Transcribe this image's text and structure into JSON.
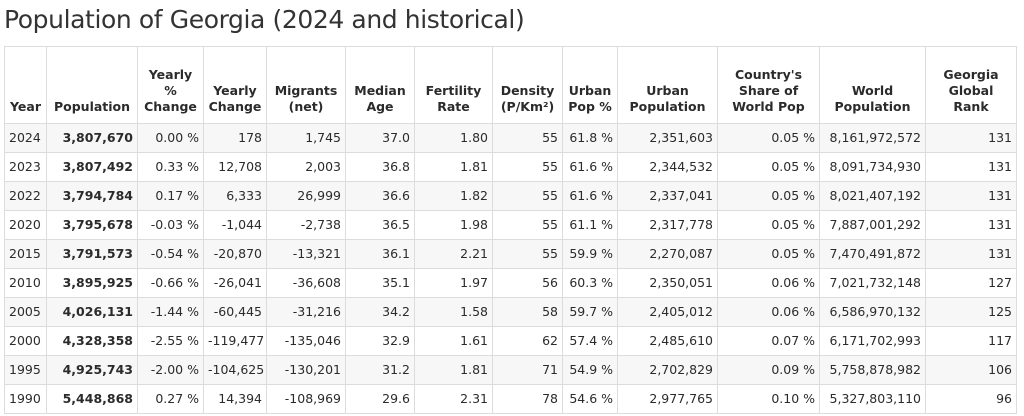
{
  "title": "Population of Georgia (2024 and historical)",
  "columns": [
    "Year",
    "Population",
    "Yearly % Change",
    "Yearly Change",
    "Migrants (net)",
    "Median Age",
    "Fertility Rate",
    "Density (P/Km²)",
    "Urban Pop %",
    "Urban Population",
    "Country's Share of World Pop",
    "World Population",
    "Georgia Global Rank"
  ],
  "rows": [
    [
      "2024",
      "3,807,670",
      "0.00 %",
      "178",
      "1,745",
      "37.0",
      "1.80",
      "55",
      "61.8 %",
      "2,351,603",
      "0.05 %",
      "8,161,972,572",
      "131"
    ],
    [
      "2023",
      "3,807,492",
      "0.33 %",
      "12,708",
      "2,003",
      "36.8",
      "1.81",
      "55",
      "61.6 %",
      "2,344,532",
      "0.05 %",
      "8,091,734,930",
      "131"
    ],
    [
      "2022",
      "3,794,784",
      "0.17 %",
      "6,333",
      "26,999",
      "36.6",
      "1.82",
      "55",
      "61.6 %",
      "2,337,041",
      "0.05 %",
      "8,021,407,192",
      "131"
    ],
    [
      "2020",
      "3,795,678",
      "-0.03 %",
      "-1,044",
      "-2,738",
      "36.5",
      "1.98",
      "55",
      "61.1 %",
      "2,317,778",
      "0.05 %",
      "7,887,001,292",
      "131"
    ],
    [
      "2015",
      "3,791,573",
      "-0.54 %",
      "-20,870",
      "-13,321",
      "36.1",
      "2.21",
      "55",
      "59.9 %",
      "2,270,087",
      "0.05 %",
      "7,470,491,872",
      "131"
    ],
    [
      "2010",
      "3,895,925",
      "-0.66 %",
      "-26,041",
      "-36,608",
      "35.1",
      "1.97",
      "56",
      "60.3 %",
      "2,350,051",
      "0.06 %",
      "7,021,732,148",
      "127"
    ],
    [
      "2005",
      "4,026,131",
      "-1.44 %",
      "-60,445",
      "-31,216",
      "34.2",
      "1.58",
      "58",
      "59.7 %",
      "2,405,012",
      "0.06 %",
      "6,586,970,132",
      "125"
    ],
    [
      "2000",
      "4,328,358",
      "-2.55 %",
      "-119,477",
      "-135,046",
      "32.9",
      "1.61",
      "62",
      "57.4 %",
      "2,485,610",
      "0.07 %",
      "6,171,702,993",
      "117"
    ],
    [
      "1995",
      "4,925,743",
      "-2.00 %",
      "-104,625",
      "-130,201",
      "31.2",
      "1.81",
      "71",
      "54.9 %",
      "2,702,829",
      "0.09 %",
      "5,758,878,982",
      "106"
    ],
    [
      "1990",
      "5,448,868",
      "0.27 %",
      "14,394",
      "-108,969",
      "29.6",
      "2.31",
      "78",
      "54.6 %",
      "2,977,765",
      "0.10 %",
      "5,327,803,110",
      "96"
    ]
  ]
}
